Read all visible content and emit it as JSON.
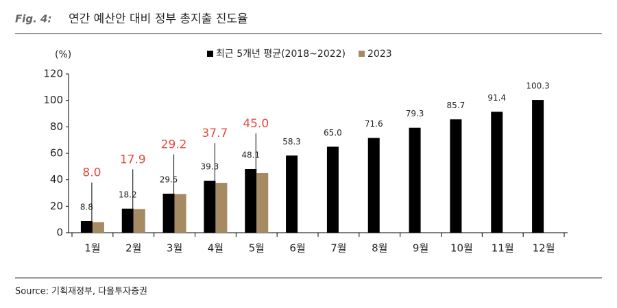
{
  "figure_label": "Fig. 4:",
  "source": "Source: 기획재정부, 다올투자증권",
  "chart_data": {
    "type": "bar",
    "title": "연간 예산안 대비 정부 총지출 진도율",
    "y_unit": "(%)",
    "categories": [
      "1월",
      "2월",
      "3월",
      "4월",
      "5월",
      "6월",
      "7월",
      "8월",
      "9월",
      "10월",
      "11월",
      "12월"
    ],
    "series": [
      {
        "name": "최근 5개년 평균(2018~2022)",
        "color": "#000000",
        "values": [
          8.8,
          18.2,
          29.5,
          39.3,
          48.1,
          58.3,
          65.0,
          71.6,
          79.3,
          85.7,
          91.4,
          100.3
        ],
        "value_labels": [
          "8.8",
          "18.2",
          "29.5",
          "39.3",
          "48.1",
          "58.3",
          "65.0",
          "71.6",
          "79.3",
          "85.7",
          "91.4",
          "100.3"
        ]
      },
      {
        "name": "2023",
        "color": "#a58a64",
        "values": [
          8.0,
          17.9,
          29.2,
          37.7,
          45.0,
          null,
          null,
          null,
          null,
          null,
          null,
          null
        ],
        "value_labels": [
          "8.0",
          "17.9",
          "29.2",
          "37.7",
          "45.0",
          null,
          null,
          null,
          null,
          null,
          null,
          null
        ]
      }
    ],
    "ylim": [
      0,
      120
    ],
    "yticks": [
      0,
      20,
      40,
      60,
      80,
      100,
      120
    ],
    "grid": false,
    "legend": "top"
  }
}
